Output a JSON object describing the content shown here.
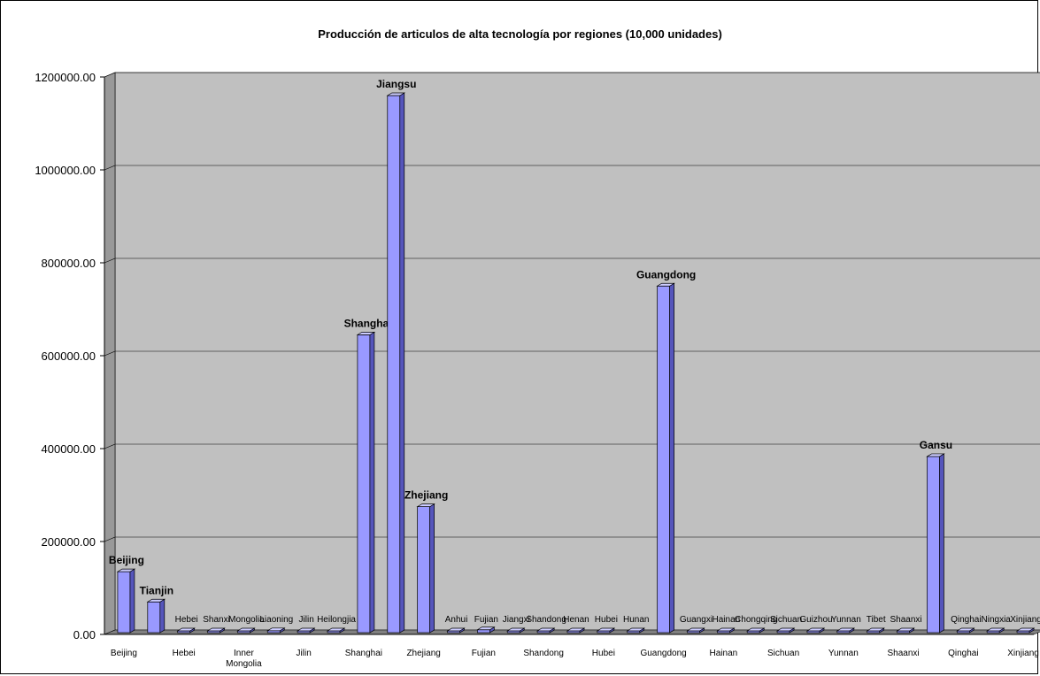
{
  "chart_data": {
    "type": "bar",
    "title": "Producción de articulos de alta tecnología por regiones (10,000 unidades)",
    "xlabel": "",
    "ylabel": "",
    "ylim": [
      0,
      1200000
    ],
    "yticks": [
      "0.00",
      "200000.00",
      "400000.00",
      "600000.00",
      "800000.00",
      "1000000.00",
      "1200000.00"
    ],
    "ytick_values": [
      0,
      200000,
      400000,
      600000,
      800000,
      1000000,
      1200000
    ],
    "grid": true,
    "categories": [
      "Beijing",
      "Tianjin",
      "Hebei",
      "Shanxi",
      "Inner Mongolia",
      "Liaoning",
      "Jilin",
      "Heilongjia",
      "Shanghai",
      "Jiangsu",
      "Zhejiang",
      "Anhui",
      "Fujian",
      "Jiangxi",
      "Shandong",
      "Henan",
      "Hubei",
      "Hunan",
      "Guangdong",
      "Guangxi",
      "Hainan",
      "Chongqing",
      "Sichuan",
      "Guizhou",
      "Yunnan",
      "Tibet",
      "Shaanxi",
      "Gansu",
      "Qinghai",
      "Ningxia",
      "Xinjiang"
    ],
    "data_labels": [
      "Beijing",
      "Tianjin",
      "Hebei",
      "Shanxi",
      "Mongolia",
      "Liaoning",
      "Jilin",
      "Heilongjia",
      "Shangha",
      "Jiangsu",
      "Zhejiang",
      "Anhui",
      "Fujian",
      "Jiangxi",
      "Shandong",
      "Henan",
      "Hubei",
      "Hunan",
      "Guangdong",
      "Guangxi",
      "Hainan",
      "Chongqing",
      "Sichuan",
      "Guizhou",
      "Yunnan",
      "Tibet",
      "Shaanxi",
      "Gansu",
      "Qinghai",
      "Ningxia",
      "Xinjiang"
    ],
    "x_tick_labels": [
      "Beijing",
      "",
      "Hebei",
      "",
      "Inner Mongolia",
      "",
      "Jilin",
      "",
      "Shanghai",
      "",
      "Zhejiang",
      "",
      "Fujian",
      "",
      "Shandong",
      "",
      "Hubei",
      "",
      "Guangdong",
      "",
      "Hainan",
      "",
      "Sichuan",
      "",
      "Yunnan",
      "",
      "Shaanxi",
      "",
      "Qinghai",
      "",
      "Xinjiang"
    ],
    "values": [
      135000,
      70000,
      1500,
      1500,
      1000,
      8000,
      1500,
      1000,
      645000,
      1160000,
      275000,
      2500,
      10000,
      1000,
      5500,
      1000,
      3000,
      1000,
      750000,
      2000,
      1000,
      2500,
      3000,
      5000,
      1000,
      500,
      2000,
      383000,
      2500,
      1000,
      3500
    ],
    "colors": {
      "bar_front": "#9999ff",
      "bar_side": "#5555bb",
      "bar_top": "#ccccff",
      "plot_bg": "#c0c0c0",
      "wall_side": "#999999",
      "floor": "#808080"
    }
  }
}
